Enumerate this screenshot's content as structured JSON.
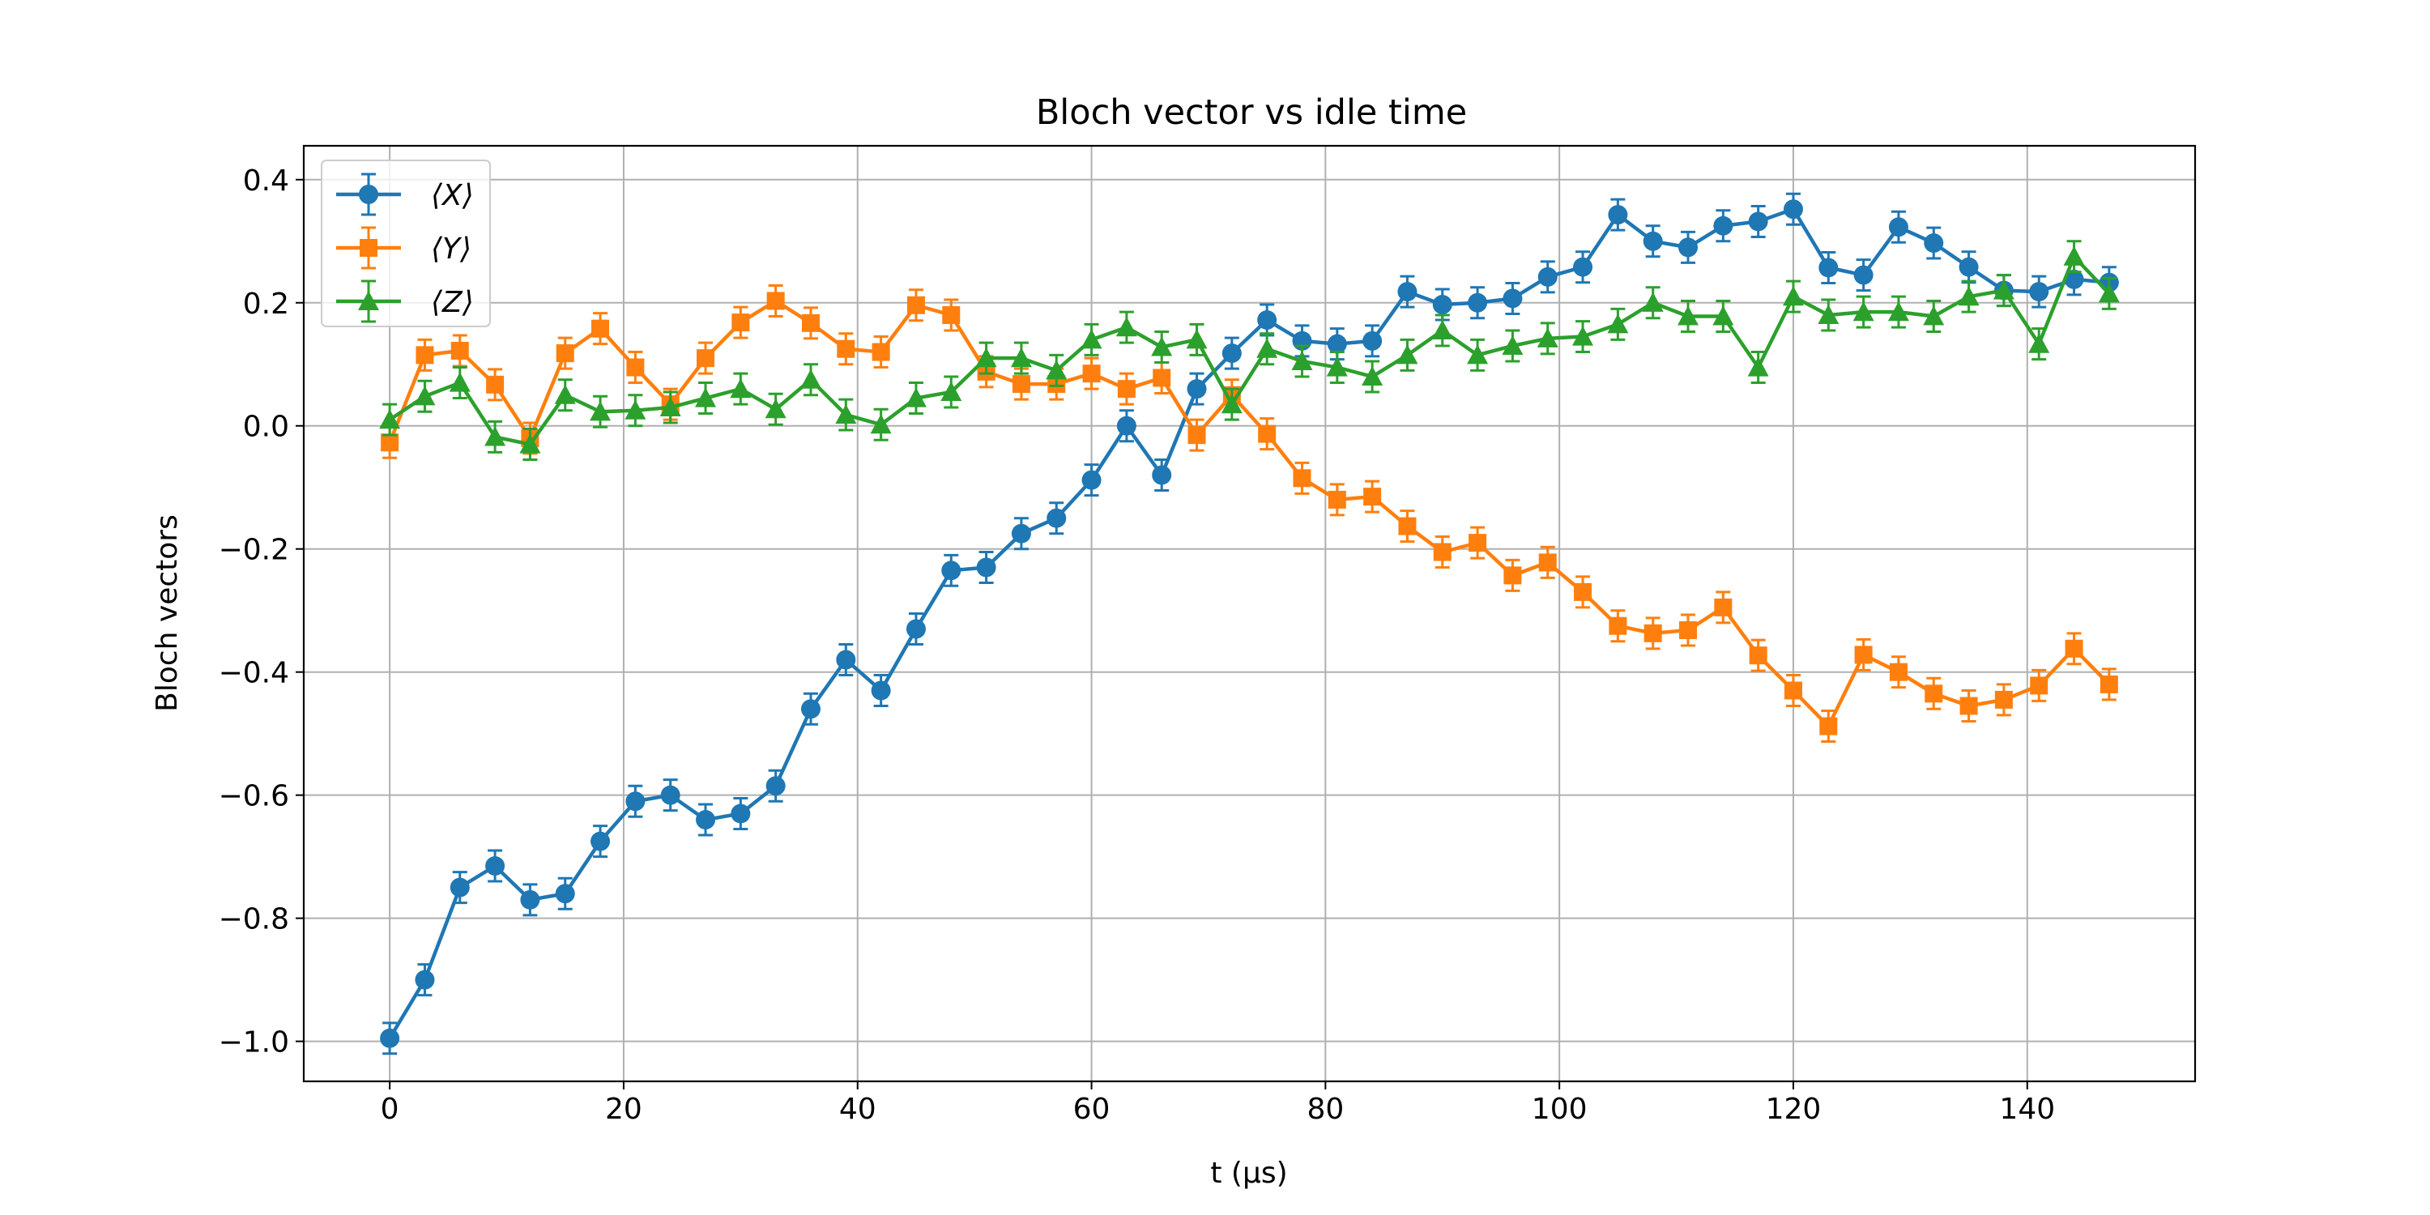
{
  "chart_data": {
    "type": "line",
    "title": "Bloch vector vs idle time",
    "xlabel": "t (μs)",
    "ylabel": "Bloch vectors",
    "xlim": [
      -7.35,
      154.35
    ],
    "ylim": [
      -1.065,
      0.455
    ],
    "xticks": [
      0,
      20,
      40,
      60,
      80,
      100,
      120,
      140
    ],
    "yticks": [
      -1.0,
      -0.8,
      -0.6,
      -0.4,
      -0.2,
      0.0,
      0.2,
      0.4
    ],
    "xtick_labels": [
      "0",
      "20",
      "40",
      "60",
      "80",
      "100",
      "120",
      "140"
    ],
    "ytick_labels": [
      "−1.0",
      "−0.8",
      "−0.6",
      "−0.4",
      "−0.2",
      "0.0",
      "0.2",
      "0.4"
    ],
    "grid": true,
    "legend_position": "upper-left",
    "error_bar": 0.025,
    "x": [
      0,
      3,
      6,
      9,
      12,
      15,
      18,
      21,
      24,
      27,
      30,
      33,
      36,
      39,
      42,
      45,
      48,
      51,
      54,
      57,
      60,
      63,
      66,
      69,
      72,
      75,
      78,
      81,
      84,
      87,
      90,
      93,
      96,
      99,
      102,
      105,
      108,
      111,
      114,
      117,
      120,
      123,
      126,
      129,
      132,
      135,
      138,
      141,
      144,
      147
    ],
    "series": [
      {
        "name": "⟨X⟩",
        "color": "#1f77b4",
        "marker": "circle",
        "values": [
          -0.995,
          -0.9,
          -0.75,
          -0.715,
          -0.77,
          -0.76,
          -0.675,
          -0.61,
          -0.6,
          -0.64,
          -0.63,
          -0.585,
          -0.46,
          -0.38,
          -0.43,
          -0.33,
          -0.235,
          -0.23,
          -0.175,
          -0.15,
          -0.088,
          0.0,
          -0.08,
          0.06,
          0.118,
          0.172,
          0.138,
          0.133,
          0.138,
          0.218,
          0.197,
          0.2,
          0.207,
          0.242,
          0.258,
          0.343,
          0.3,
          0.29,
          0.325,
          0.332,
          0.352,
          0.257,
          0.245,
          0.323,
          0.297,
          0.258,
          0.22,
          0.218,
          0.238,
          0.233
        ]
      },
      {
        "name": "⟨Y⟩",
        "color": "#ff7f0e",
        "marker": "square",
        "values": [
          -0.027,
          0.115,
          0.122,
          0.067,
          -0.02,
          0.118,
          0.158,
          0.095,
          0.035,
          0.11,
          0.168,
          0.203,
          0.167,
          0.125,
          0.12,
          0.196,
          0.18,
          0.088,
          0.068,
          0.068,
          0.085,
          0.06,
          0.078,
          -0.015,
          0.05,
          -0.013,
          -0.085,
          -0.12,
          -0.115,
          -0.163,
          -0.205,
          -0.19,
          -0.243,
          -0.222,
          -0.27,
          -0.325,
          -0.337,
          -0.332,
          -0.295,
          -0.373,
          -0.43,
          -0.488,
          -0.372,
          -0.4,
          -0.435,
          -0.455,
          -0.445,
          -0.422,
          -0.362,
          -0.42
        ]
      },
      {
        "name": "⟨Z⟩",
        "color": "#2ca02c",
        "marker": "triangle",
        "values": [
          0.01,
          0.048,
          0.07,
          -0.018,
          -0.03,
          0.05,
          0.023,
          0.025,
          0.03,
          0.045,
          0.06,
          0.027,
          0.075,
          0.018,
          0.002,
          0.045,
          0.055,
          0.11,
          0.11,
          0.09,
          0.14,
          0.16,
          0.128,
          0.14,
          0.035,
          0.125,
          0.105,
          0.095,
          0.08,
          0.115,
          0.155,
          0.115,
          0.13,
          0.142,
          0.145,
          0.165,
          0.2,
          0.178,
          0.178,
          0.095,
          0.21,
          0.18,
          0.185,
          0.185,
          0.178,
          0.21,
          0.22,
          0.133,
          0.275,
          0.215
        ]
      }
    ]
  }
}
